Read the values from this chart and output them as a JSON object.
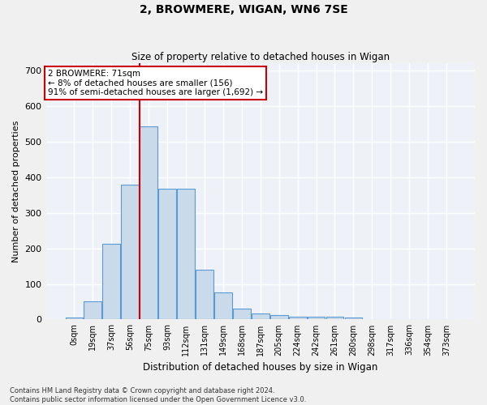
{
  "title1": "2, BROWMERE, WIGAN, WN6 7SE",
  "title2": "Size of property relative to detached houses in Wigan",
  "xlabel": "Distribution of detached houses by size in Wigan",
  "ylabel": "Number of detached properties",
  "categories": [
    "0sqm",
    "19sqm",
    "37sqm",
    "56sqm",
    "75sqm",
    "93sqm",
    "112sqm",
    "131sqm",
    "149sqm",
    "168sqm",
    "187sqm",
    "205sqm",
    "224sqm",
    "242sqm",
    "261sqm",
    "280sqm",
    "298sqm",
    "317sqm",
    "336sqm",
    "354sqm",
    "373sqm"
  ],
  "values": [
    5,
    50,
    213,
    380,
    543,
    367,
    367,
    140,
    76,
    30,
    16,
    12,
    8,
    8,
    7,
    6,
    2,
    0,
    0,
    0,
    2
  ],
  "bar_color": "#c9daea",
  "bar_edge_color": "#5b9bd5",
  "background_color": "#eef2f8",
  "fig_background": "#f0f0f0",
  "grid_color": "#ffffff",
  "vline_x": 3.5,
  "vline_color": "#cc0000",
  "annotation_text": "2 BROWMERE: 71sqm\n← 8% of detached houses are smaller (156)\n91% of semi-detached houses are larger (1,692) →",
  "annotation_box_color": "#ffffff",
  "annotation_box_edge": "#cc0000",
  "footnote": "Contains HM Land Registry data © Crown copyright and database right 2024.\nContains public sector information licensed under the Open Government Licence v3.0.",
  "ylim": [
    0,
    720
  ],
  "yticks": [
    0,
    100,
    200,
    300,
    400,
    500,
    600,
    700
  ]
}
